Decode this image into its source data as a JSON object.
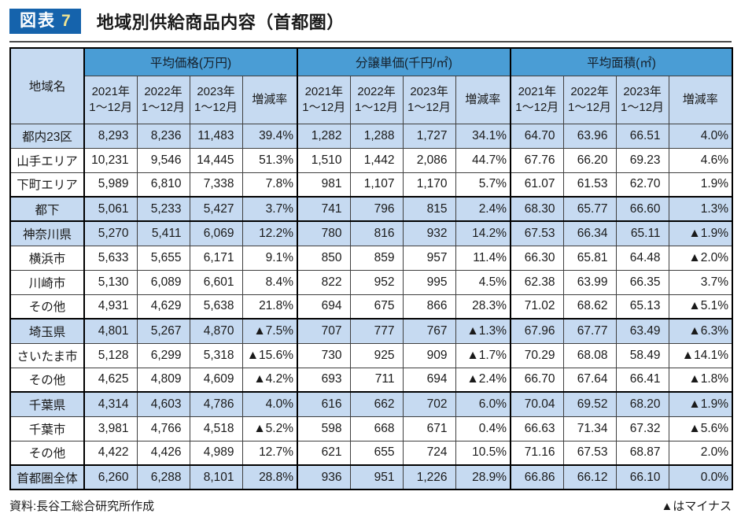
{
  "header": {
    "badge_label": "図表",
    "badge_number": "7",
    "title": "地域別供給商品内容（首都圏）"
  },
  "table": {
    "region_header": "地域名",
    "col_headers": [
      "2021年\n1～12月",
      "2022年\n1～12月",
      "2023年\n1～12月",
      "増減率"
    ]
  },
  "chart_data": {
    "type": "table",
    "title": "地域別供給商品内容（首都圏）",
    "column_groups": [
      "平均価格(万円)",
      "分譲単価(千円/㎡)",
      "平均面積(㎡)"
    ],
    "sub_columns_per_group": [
      "2021年1～12月",
      "2022年1～12月",
      "2023年1～12月",
      "増減率"
    ],
    "region_column_label": "地域名",
    "rows": [
      {
        "region": "都内23区",
        "highlight": true,
        "block_start": false,
        "values": [
          "8,293",
          "8,236",
          "11,483",
          "39.4%",
          "1,282",
          "1,288",
          "1,727",
          "34.1%",
          "64.70",
          "63.96",
          "66.51",
          "4.0%"
        ]
      },
      {
        "region": "山手エリア",
        "highlight": false,
        "block_start": false,
        "values": [
          "10,231",
          "9,546",
          "14,445",
          "51.3%",
          "1,510",
          "1,442",
          "2,086",
          "44.7%",
          "67.76",
          "66.20",
          "69.23",
          "4.6%"
        ]
      },
      {
        "region": "下町エリア",
        "highlight": false,
        "block_start": false,
        "values": [
          "5,989",
          "6,810",
          "7,338",
          "7.8%",
          "981",
          "1,107",
          "1,170",
          "5.7%",
          "61.07",
          "61.53",
          "62.70",
          "1.9%"
        ]
      },
      {
        "region": "都下",
        "highlight": true,
        "block_start": true,
        "values": [
          "5,061",
          "5,233",
          "5,427",
          "3.7%",
          "741",
          "796",
          "815",
          "2.4%",
          "68.30",
          "65.77",
          "66.60",
          "1.3%"
        ]
      },
      {
        "region": "神奈川県",
        "highlight": true,
        "block_start": true,
        "values": [
          "5,270",
          "5,411",
          "6,069",
          "12.2%",
          "780",
          "816",
          "932",
          "14.2%",
          "67.53",
          "66.34",
          "65.11",
          "▲1.9%"
        ]
      },
      {
        "region": "横浜市",
        "highlight": false,
        "block_start": false,
        "values": [
          "5,633",
          "5,655",
          "6,171",
          "9.1%",
          "850",
          "859",
          "957",
          "11.4%",
          "66.30",
          "65.81",
          "64.48",
          "▲2.0%"
        ]
      },
      {
        "region": "川崎市",
        "highlight": false,
        "block_start": false,
        "values": [
          "5,130",
          "6,089",
          "6,601",
          "8.4%",
          "822",
          "952",
          "995",
          "4.5%",
          "62.38",
          "63.99",
          "66.35",
          "3.7%"
        ]
      },
      {
        "region": "その他",
        "highlight": false,
        "block_start": false,
        "values": [
          "4,931",
          "4,629",
          "5,638",
          "21.8%",
          "694",
          "675",
          "866",
          "28.3%",
          "71.02",
          "68.62",
          "65.13",
          "▲5.1%"
        ]
      },
      {
        "region": "埼玉県",
        "highlight": true,
        "block_start": true,
        "values": [
          "4,801",
          "5,267",
          "4,870",
          "▲7.5%",
          "707",
          "777",
          "767",
          "▲1.3%",
          "67.96",
          "67.77",
          "63.49",
          "▲6.3%"
        ]
      },
      {
        "region": "さいたま市",
        "highlight": false,
        "block_start": false,
        "values": [
          "5,128",
          "6,299",
          "5,318",
          "▲15.6%",
          "730",
          "925",
          "909",
          "▲1.7%",
          "70.29",
          "68.08",
          "58.49",
          "▲14.1%"
        ]
      },
      {
        "region": "その他",
        "highlight": false,
        "block_start": false,
        "values": [
          "4,625",
          "4,809",
          "4,609",
          "▲4.2%",
          "693",
          "711",
          "694",
          "▲2.4%",
          "66.70",
          "67.64",
          "66.41",
          "▲1.8%"
        ]
      },
      {
        "region": "千葉県",
        "highlight": true,
        "block_start": true,
        "values": [
          "4,314",
          "4,603",
          "4,786",
          "4.0%",
          "616",
          "662",
          "702",
          "6.0%",
          "70.04",
          "69.52",
          "68.20",
          "▲1.9%"
        ]
      },
      {
        "region": "千葉市",
        "highlight": false,
        "block_start": false,
        "values": [
          "3,981",
          "4,766",
          "4,518",
          "▲5.2%",
          "598",
          "668",
          "671",
          "0.4%",
          "66.63",
          "71.34",
          "67.32",
          "▲5.6%"
        ]
      },
      {
        "region": "その他",
        "highlight": false,
        "block_start": false,
        "values": [
          "4,422",
          "4,426",
          "4,989",
          "12.7%",
          "621",
          "655",
          "724",
          "10.5%",
          "71.16",
          "67.53",
          "68.87",
          "2.0%"
        ]
      },
      {
        "region": "首都圏全体",
        "highlight": true,
        "block_start": true,
        "values": [
          "6,260",
          "6,288",
          "8,101",
          "28.8%",
          "936",
          "951",
          "1,226",
          "28.9%",
          "66.86",
          "66.12",
          "66.10",
          "0.0%"
        ]
      }
    ]
  },
  "footer": {
    "source": "資料:長谷工総合研究所作成",
    "note": "▲はマイナス"
  },
  "colors": {
    "badge_blue": "#1563ac",
    "badge_number_yellow": "#efe492",
    "group_header_blue": "#4a9dd5",
    "highlight_row_blue": "#c6daf1"
  }
}
